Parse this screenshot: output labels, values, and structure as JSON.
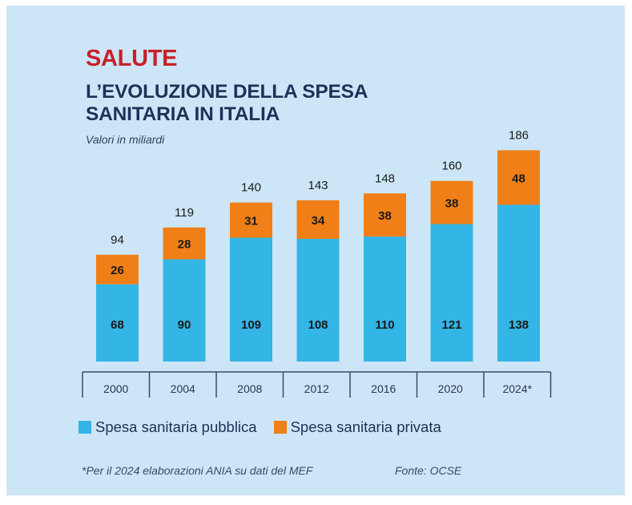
{
  "header": {
    "kicker": "SALUTE",
    "title_line1": "L’EVOLUZIONE DELLA SPESA",
    "title_line2": "SANITARIA IN ITALIA",
    "subtitle": "Valori in miliardi"
  },
  "colors": {
    "public": "#33b5e5",
    "private": "#f07f17",
    "background": "#cce6f7",
    "kicker": "#c8202a",
    "title": "#1e3158"
  },
  "chart_data": {
    "type": "bar",
    "stacked": true,
    "title": "L’EVOLUZIONE DELLA SPESA SANITARIA IN ITALIA",
    "subtitle": "Valori in miliardi",
    "xlabel": "",
    "ylabel": "",
    "categories": [
      "2000",
      "2004",
      "2008",
      "2012",
      "2016",
      "2020",
      "2024*"
    ],
    "series": [
      {
        "name": "Spesa sanitaria pubblica",
        "color": "#33b5e5",
        "values": [
          68,
          90,
          109,
          108,
          110,
          121,
          138
        ]
      },
      {
        "name": "Spesa sanitaria privata",
        "color": "#f07f17",
        "values": [
          26,
          28,
          31,
          34,
          38,
          38,
          48
        ]
      }
    ],
    "totals": [
      94,
      119,
      140,
      143,
      148,
      160,
      186
    ],
    "ylim": [
      0,
      200
    ],
    "grid": false,
    "legend_position": "bottom-left"
  },
  "legend": {
    "items": [
      {
        "label": "Spesa sanitaria pubblica",
        "color": "#33b5e5"
      },
      {
        "label": "Spesa sanitaria privata",
        "color": "#f07f17"
      }
    ]
  },
  "footer": {
    "note": "*Per il 2024 elaborazioni ANIA su dati del MEF",
    "source": "Fonte: OCSE"
  }
}
